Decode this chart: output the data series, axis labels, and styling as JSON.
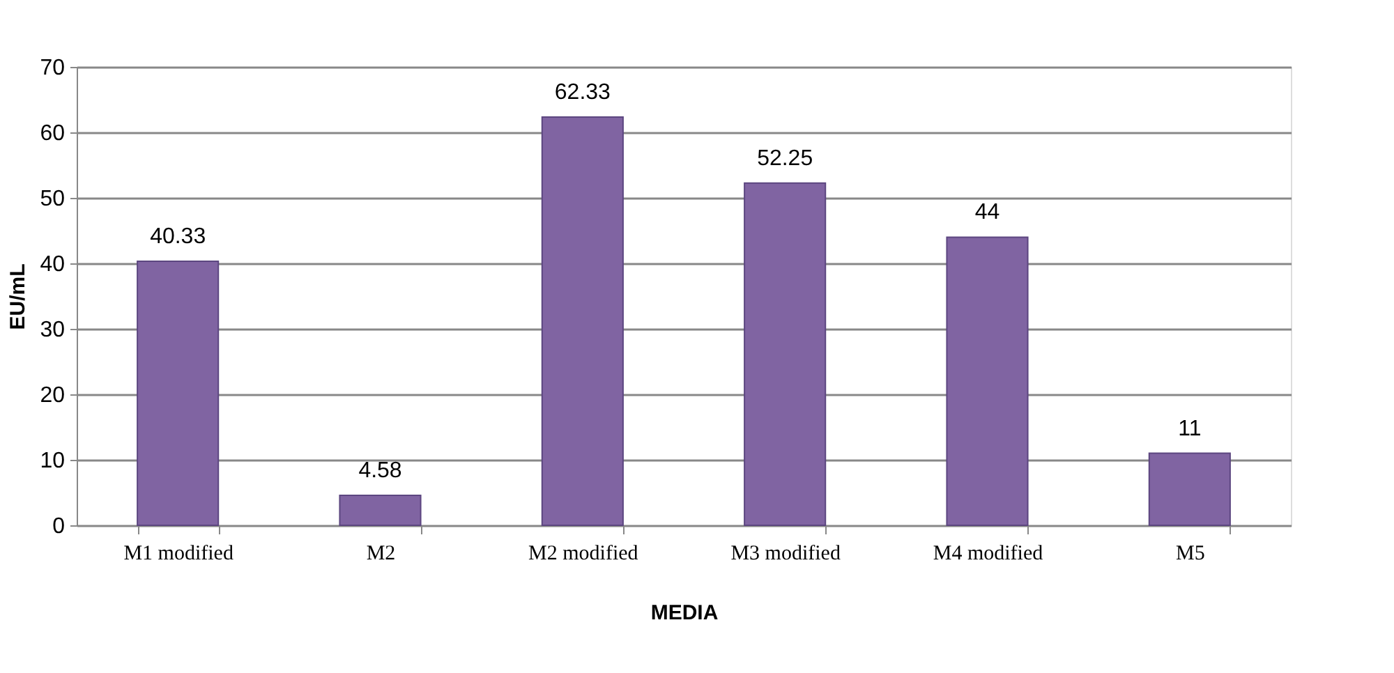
{
  "chart_data": {
    "type": "bar",
    "xlabel": "MEDIA",
    "ylabel": "EU/mL",
    "categories": [
      "M1 modified",
      "M2",
      "M2 modified",
      "M3 modified",
      "M4 modified",
      "M5"
    ],
    "values": [
      40.33,
      4.58,
      62.33,
      52.25,
      44,
      11
    ],
    "color": "#8064a2",
    "ylim": [
      0,
      70
    ],
    "yticks": [
      0,
      10,
      20,
      30,
      40,
      50,
      60,
      70
    ],
    "grid": "y",
    "data_labels": true
  }
}
